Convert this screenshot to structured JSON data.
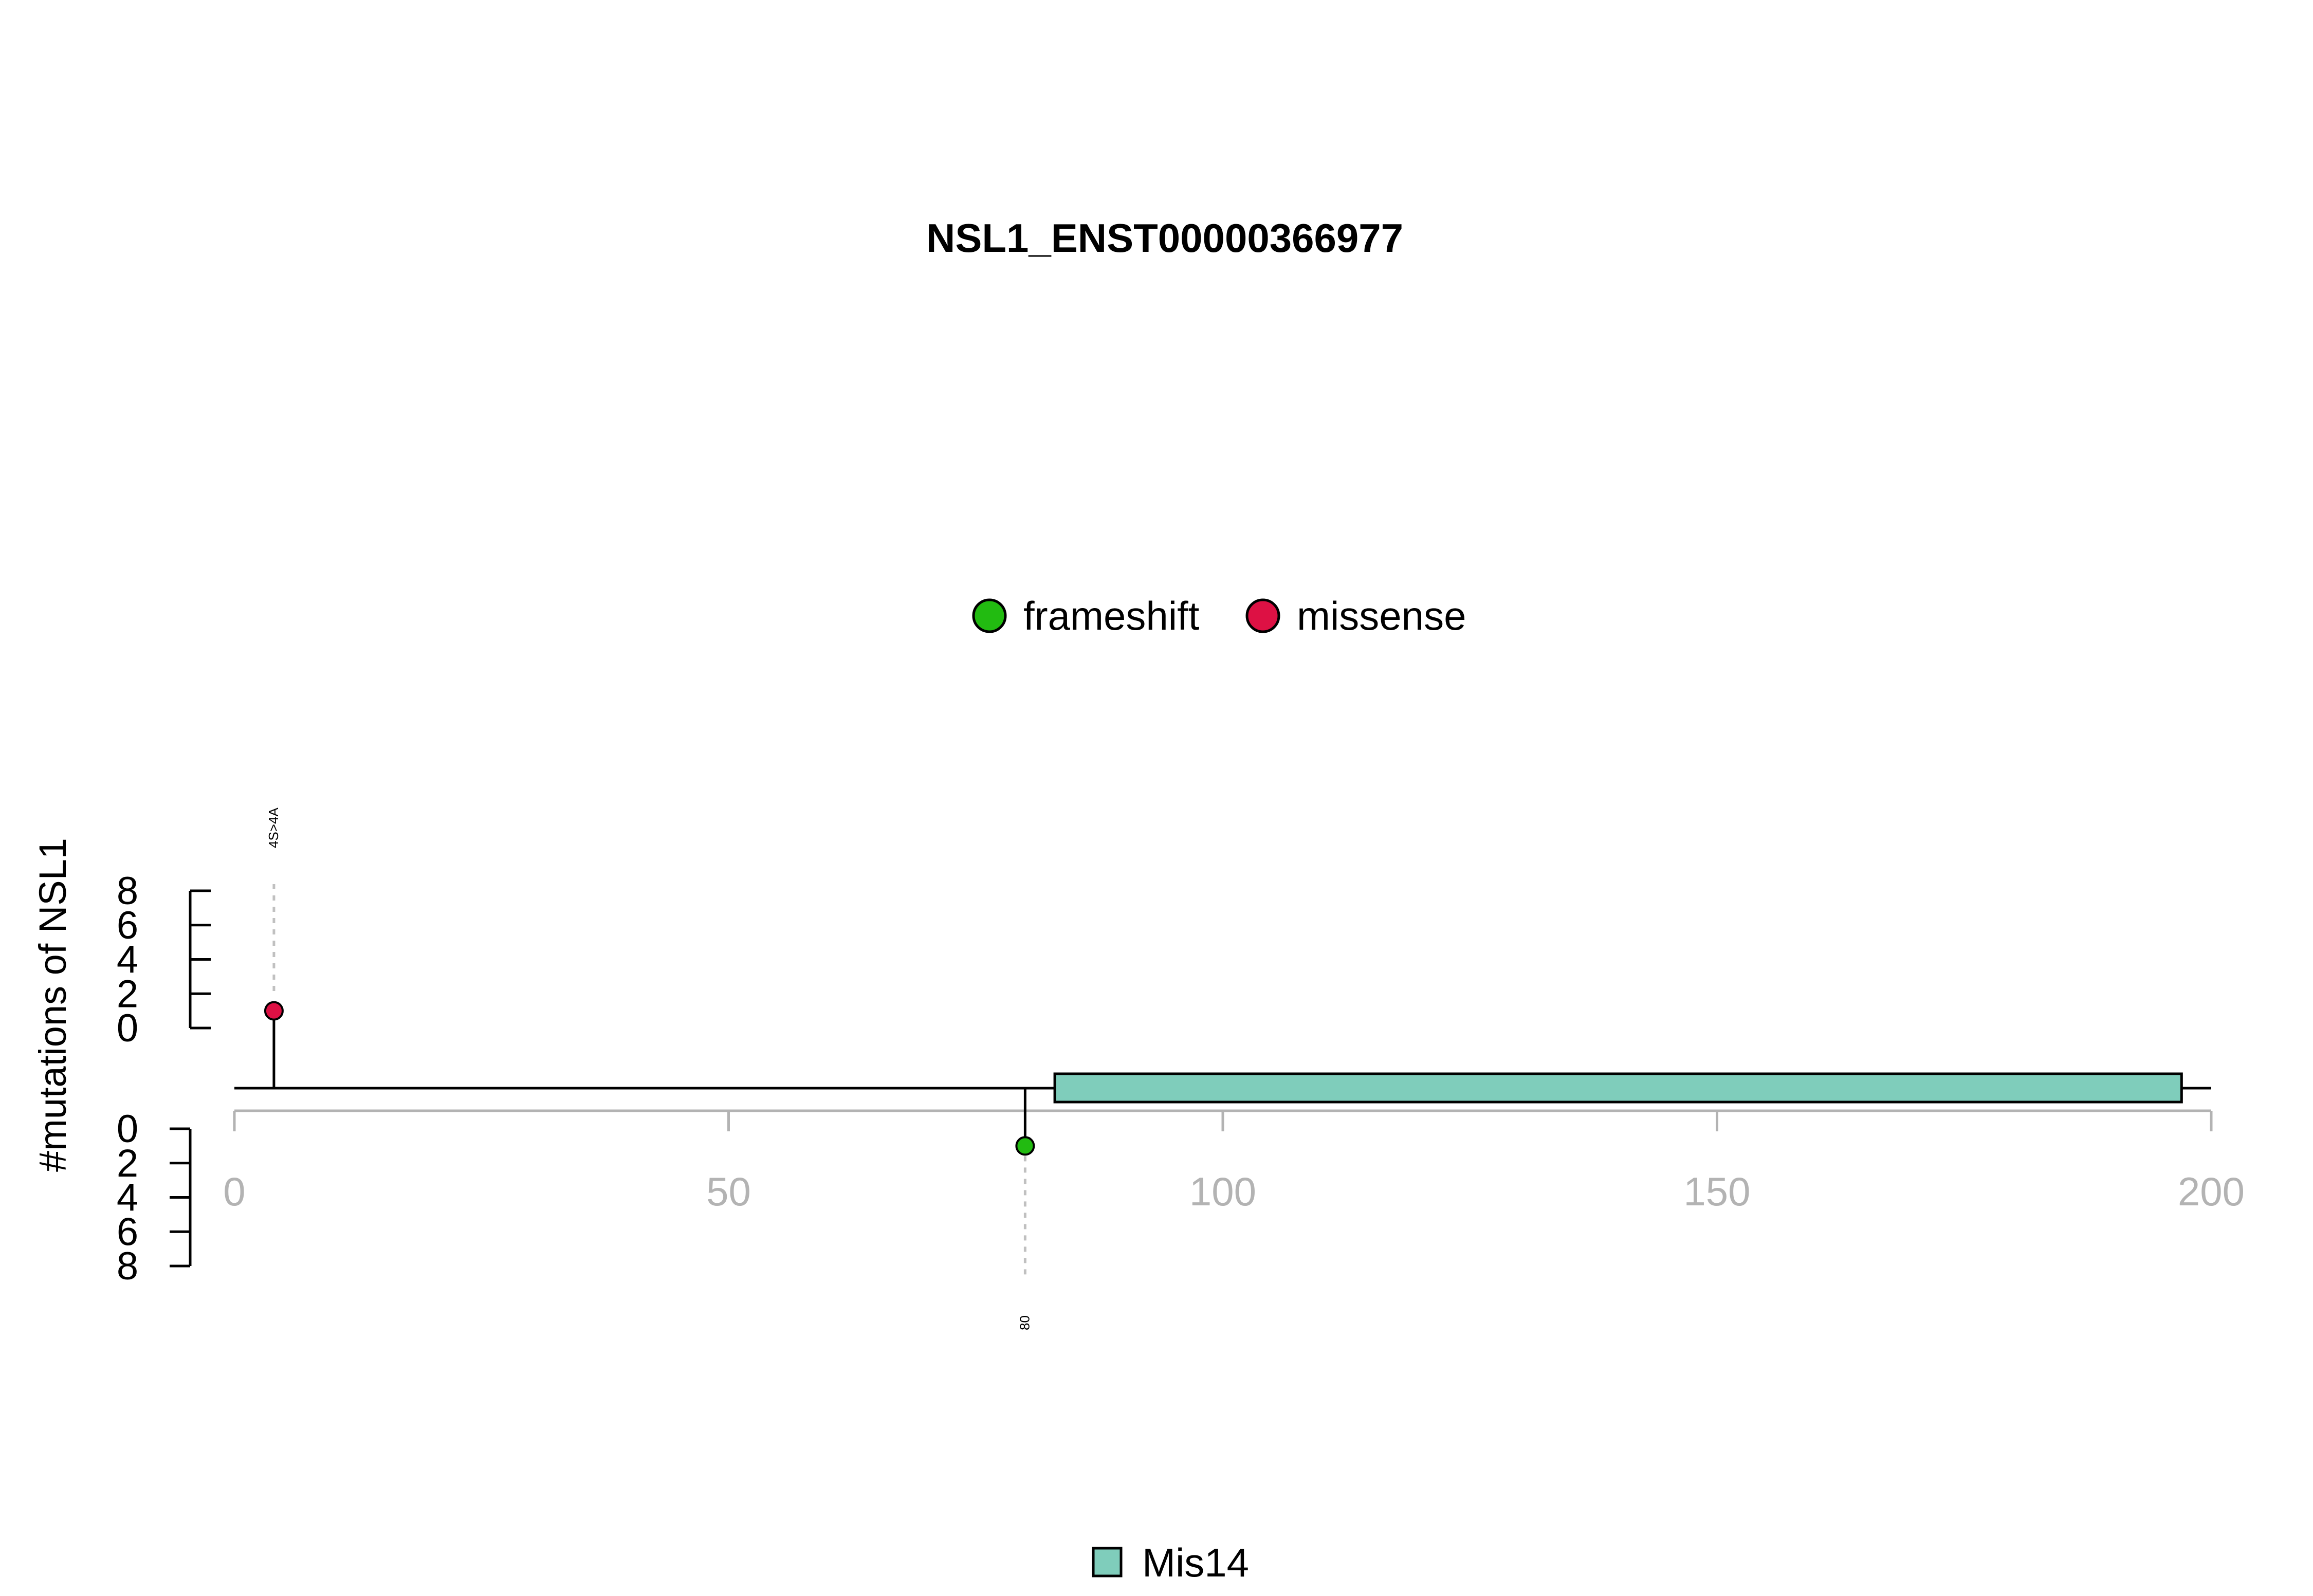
{
  "chart_data": {
    "type": "lollipop",
    "title": "NSL1_ENST00000366977",
    "ylabel": "#mutations of NSL1",
    "xlim": [
      0,
      200
    ],
    "x_ticks": [
      0,
      50,
      100,
      150,
      200
    ],
    "y_upper": {
      "ticks": [
        0,
        2,
        4,
        6,
        8
      ],
      "range": [
        0,
        8
      ]
    },
    "y_lower": {
      "ticks": [
        0,
        2,
        4,
        6,
        8
      ],
      "range": [
        0,
        8
      ]
    },
    "protein_length": 200,
    "mutation_legend": [
      {
        "name": "frameshift",
        "color": "#22bb11"
      },
      {
        "name": "missense",
        "color": "#dd1144"
      }
    ],
    "mutations": [
      {
        "position": 4,
        "count": 1,
        "type": "missense",
        "side": "upper",
        "label": "4S>4A",
        "color": "#dd1144"
      },
      {
        "position": 80,
        "count": 1,
        "type": "frameshift",
        "side": "lower",
        "label": "80",
        "color": "#22bb11"
      }
    ],
    "domains": [
      {
        "name": "Mis14",
        "start": 83,
        "end": 197,
        "color": "#7fcdbb"
      }
    ],
    "domain_legend": [
      {
        "name": "Mis14",
        "color": "#7fcdbb"
      }
    ]
  },
  "colors": {
    "axis_x": "#b3b3b3",
    "axis_y": "#000000",
    "guide": "#c0c0c0",
    "backbone": "#000000"
  }
}
